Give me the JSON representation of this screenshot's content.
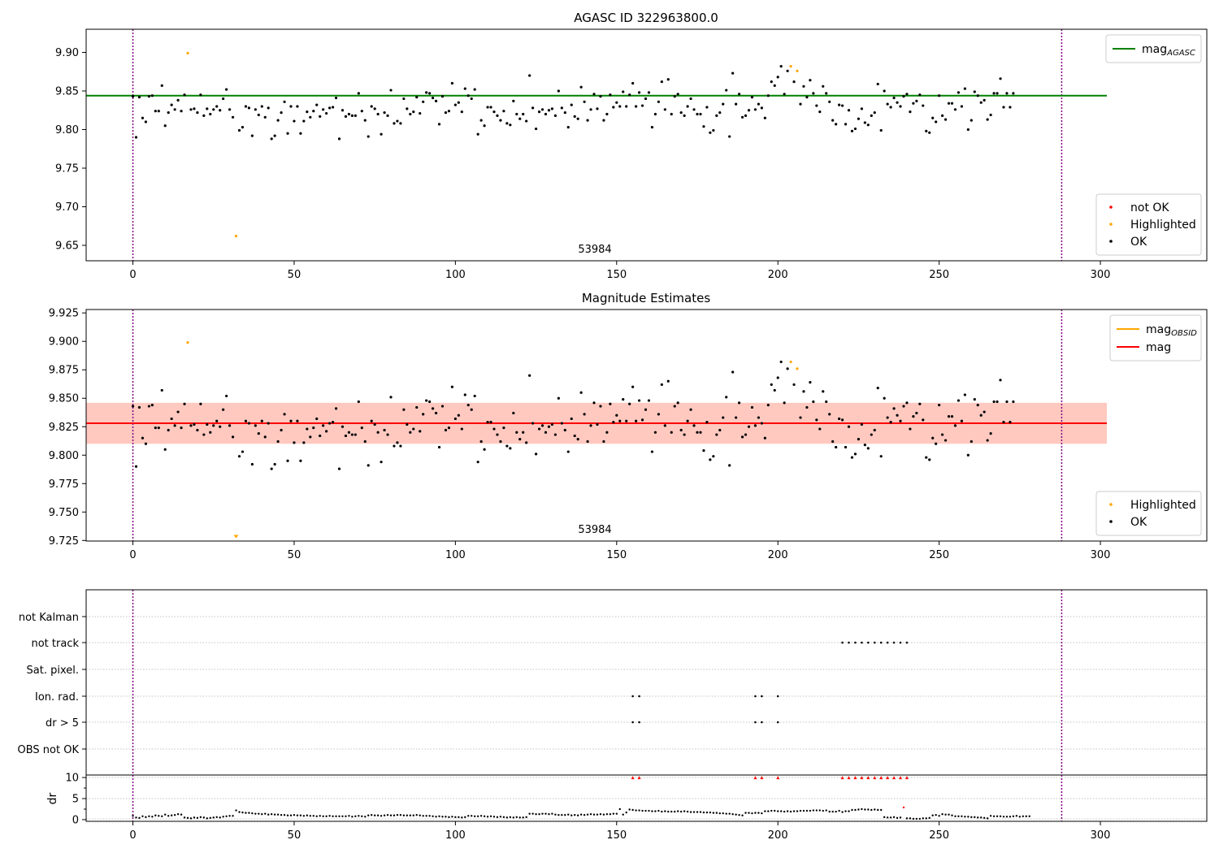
{
  "chart_data": [
    {
      "type": "scatter",
      "title": "AGASC ID 322963800.0",
      "xlim": [
        -14.5,
        333
      ],
      "ylim": [
        9.63,
        9.93
      ],
      "xticks": [
        0,
        50,
        100,
        150,
        200,
        250,
        300
      ],
      "yticks": [
        9.65,
        9.7,
        9.75,
        9.8,
        9.85,
        9.9
      ],
      "ytick_labels": [
        "9.65",
        "9.70",
        "9.75",
        "9.80",
        "9.85",
        "9.90"
      ],
      "vlines": [
        0,
        288
      ],
      "vline_color": "#800080",
      "obsid_label": "53984",
      "hline": {
        "name": "AGASC",
        "value": 9.844,
        "color": "#008000"
      },
      "highlighted": [
        [
          17,
          9.899
        ],
        [
          32,
          9.662
        ],
        [
          204,
          9.882
        ],
        [
          206,
          9.876
        ]
      ],
      "legend_lines": [
        {
          "name": "mag",
          "sub": "AGASC",
          "color": "#008000",
          "width": 2
        }
      ],
      "legend_points": [
        {
          "name": "not OK",
          "color": "#ff0000"
        },
        {
          "name": "Highlighted",
          "color": "#ffa500"
        },
        {
          "name": "OK",
          "color": "#000000"
        }
      ]
    },
    {
      "type": "scatter",
      "title": "Magnitude Estimates",
      "xlim": [
        -14.5,
        333
      ],
      "ylim": [
        9.7245,
        9.928
      ],
      "xticks": [
        0,
        50,
        100,
        150,
        200,
        250,
        300
      ],
      "yticks": [
        9.725,
        9.75,
        9.775,
        9.8,
        9.825,
        9.85,
        9.875,
        9.9,
        9.925
      ],
      "ytick_labels": [
        "9.725",
        "9.750",
        "9.775",
        "9.800",
        "9.825",
        "9.850",
        "9.875",
        "9.900",
        "9.925"
      ],
      "vlines": [
        0,
        288
      ],
      "vline_color": "#800080",
      "obsid_label": "53984",
      "mean": 9.828,
      "bands": [
        {
          "lo": 9.81,
          "hi": 9.846,
          "color": "#ffc0cb",
          "opacity": 0.5
        },
        {
          "lo": 9.81,
          "hi": 9.846,
          "color": "#ffa07a",
          "opacity": 0.35
        }
      ],
      "highlighted": [
        [
          17,
          9.899
        ],
        [
          32,
          9.727
        ],
        [
          204,
          9.882
        ],
        [
          206,
          9.876
        ]
      ],
      "legend_lines": [
        {
          "name": "mag",
          "sub": "OBSID",
          "color": "#ffa500",
          "width": 2
        },
        {
          "name": "mag",
          "sub": "",
          "color": "#ff0000",
          "width": 2
        }
      ],
      "legend_points": [
        {
          "name": "Highlighted",
          "color": "#ffa500"
        },
        {
          "name": "OK",
          "color": "#000000"
        }
      ]
    },
    {
      "type": "scatter",
      "xlim": [
        -14.5,
        333
      ],
      "xticks": [
        0,
        50,
        100,
        150,
        200,
        250,
        300
      ],
      "flag_rows": [
        "not Kalman",
        "not track",
        "Sat. pixel.",
        "Ion. rad.",
        "dr > 5",
        "OBS not OK"
      ],
      "flags": {
        "not Kalman": [],
        "not track": [
          220,
          222,
          224,
          226,
          228,
          230,
          232,
          234,
          236,
          238,
          240
        ],
        "Sat. pixel.": [],
        "Ion. rad.": [
          155,
          157,
          193,
          195,
          200
        ],
        "dr > 5": [
          155,
          157,
          193,
          195,
          200
        ],
        "OBS not OK": []
      },
      "dr_ylabel": "dr",
      "dr_ylim": [
        -0.4,
        10.6
      ],
      "dr_yticks": [
        0,
        5,
        10
      ],
      "dr_threshold": 10,
      "dr_over_threshold": [
        155,
        157,
        193,
        195,
        200,
        220,
        222,
        224,
        226,
        228,
        230,
        232,
        234,
        236,
        238,
        240
      ]
    }
  ]
}
